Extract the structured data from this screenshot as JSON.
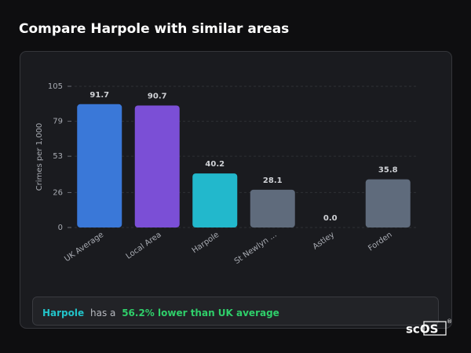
{
  "header": {
    "title": "Compare Harpole with similar areas"
  },
  "chart_data": {
    "type": "bar",
    "y_label": "Crimes per 1,000",
    "categories": [
      "UK Average",
      "Local Area",
      "Harpole",
      "St Newlyn ...",
      "Astley",
      "Forden"
    ],
    "values": [
      91.7,
      90.7,
      40.2,
      28.1,
      0,
      35.8
    ],
    "value_labels": [
      "91.7",
      "90.7",
      "40.2",
      "28.1",
      "0.0",
      "35.8"
    ],
    "colors": [
      "#3a78d8",
      "#7b4fd6",
      "#22b8cc",
      "#5f6b7c",
      "#5f6b7c",
      "#5f6b7c"
    ],
    "ylim": [
      0,
      105
    ],
    "yticks": [
      0,
      26,
      53,
      79,
      105
    ],
    "grid": true
  },
  "footer": {
    "area": "Harpole",
    "text": "has a",
    "highlight": "56.2% lower than UK average"
  },
  "logo": {
    "text": "scOS",
    "mark": "®"
  }
}
